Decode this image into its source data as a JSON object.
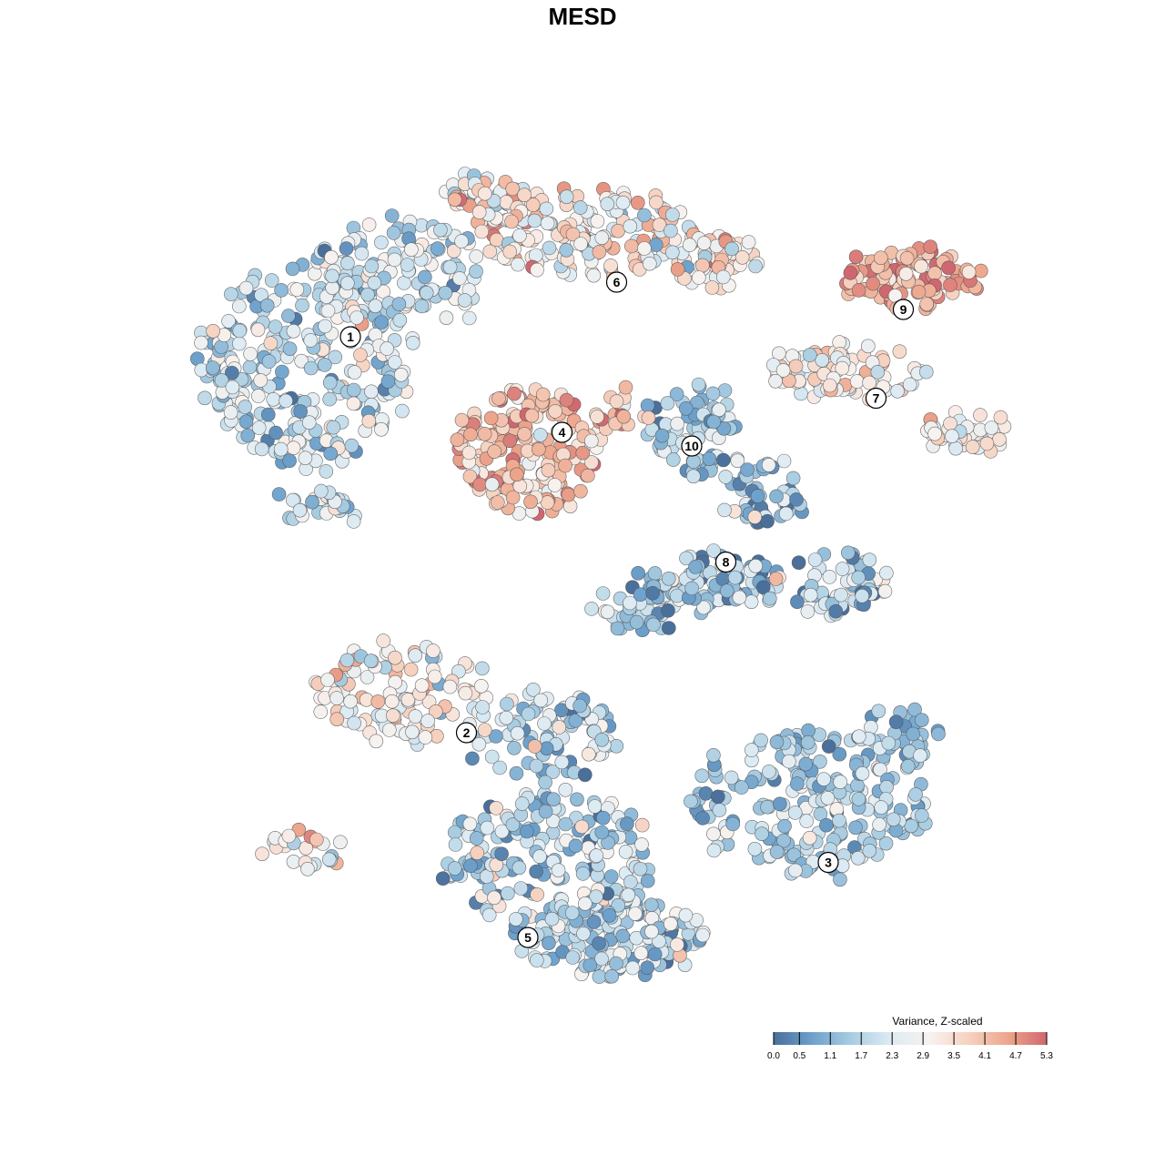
{
  "chart_data": {
    "type": "scatter",
    "title": "MESD",
    "legend": {
      "title": "Variance, Z-scaled",
      "placement": "bottom-right",
      "range": [
        0.0,
        5.3
      ],
      "ticks": [
        0.0,
        0.5,
        1.1,
        1.7,
        2.3,
        2.9,
        3.5,
        4.1,
        4.7,
        5.3
      ],
      "tick_labels": [
        "0.0",
        "0.5",
        "1.1",
        "1.7",
        "2.3",
        "2.9",
        "3.5",
        "4.1",
        "4.7",
        "5.3"
      ],
      "colors": [
        "#4a6f9b",
        "#6da1cc",
        "#a9cde2",
        "#ddebf3",
        "#f7f2ef",
        "#f6d1bf",
        "#eda68c",
        "#d06670"
      ]
    },
    "grid": false,
    "axes_visible": false,
    "clusters": [
      {
        "label": "1",
        "x": -3.4,
        "y": 3.6,
        "mean": 2.0,
        "sd": 0.8
      },
      {
        "label": "2",
        "x": -1.7,
        "y": -2.2,
        "mean": 3.0,
        "sd": 0.8
      },
      {
        "label": "3",
        "x": 3.6,
        "y": -4.1,
        "mean": 1.5,
        "sd": 0.6
      },
      {
        "label": "4",
        "x": -0.3,
        "y": 2.2,
        "mean": 4.1,
        "sd": 0.7
      },
      {
        "label": "5",
        "x": -0.8,
        "y": -5.2,
        "mean": 1.8,
        "sd": 0.9
      },
      {
        "label": "6",
        "x": 0.5,
        "y": 4.4,
        "mean": 3.0,
        "sd": 0.9
      },
      {
        "label": "7",
        "x": 4.3,
        "y": 2.7,
        "mean": 3.2,
        "sd": 0.6
      },
      {
        "label": "8",
        "x": 2.1,
        "y": 0.3,
        "mean": 1.5,
        "sd": 0.9
      },
      {
        "label": "9",
        "x": 4.7,
        "y": 4.0,
        "mean": 4.4,
        "sd": 0.6
      },
      {
        "label": "10",
        "x": 1.6,
        "y": 2.0,
        "mean": 1.5,
        "sd": 0.6
      }
    ]
  }
}
